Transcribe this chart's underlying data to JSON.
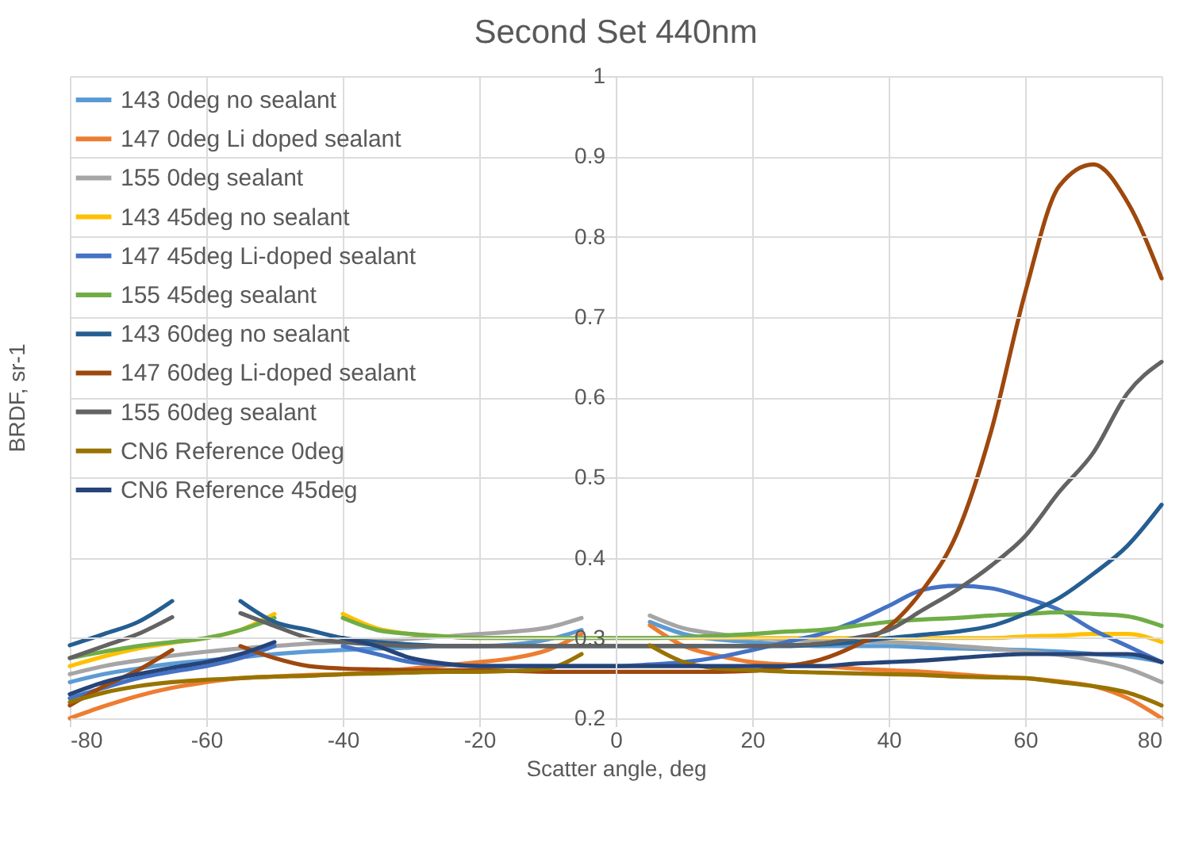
{
  "chart_data": {
    "type": "line",
    "title": "Second Set 440nm",
    "xlabel": "Scatter angle, deg",
    "ylabel": "BRDF, sr-1",
    "x": [
      -80,
      -75,
      -70,
      -65,
      -60,
      -55,
      -50,
      -45,
      -40,
      -35,
      -30,
      -25,
      -20,
      -15,
      -10,
      -5,
      0,
      5,
      10,
      15,
      20,
      25,
      30,
      35,
      40,
      45,
      50,
      55,
      60,
      65,
      70,
      75,
      80
    ],
    "xlim": [
      -80,
      80
    ],
    "xticks": [
      -80,
      -60,
      -40,
      -20,
      0,
      20,
      40,
      60,
      80
    ],
    "ylim": [
      0.2,
      1
    ],
    "yticks": [
      0.2,
      0.3,
      0.4,
      0.5,
      0.6,
      0.7,
      0.8,
      0.9,
      1
    ],
    "grid": true,
    "legend": "top left",
    "marker": "none",
    "series": [
      {
        "name": "143 0deg no sealant",
        "color": "#5b9bd5",
        "values": [
          0.245,
          0.255,
          0.262,
          0.268,
          0.272,
          0.276,
          0.28,
          0.283,
          0.285,
          0.287,
          0.288,
          0.29,
          0.29,
          0.292,
          0.298,
          0.31,
          null,
          0.32,
          0.305,
          0.298,
          0.295,
          0.292,
          0.29,
          0.29,
          0.29,
          0.288,
          0.287,
          0.286,
          0.285,
          0.283,
          0.28,
          0.277,
          0.27
        ]
      },
      {
        "name": "147 0deg Li doped sealant",
        "color": "#ed7d31",
        "values": [
          0.2,
          0.215,
          0.228,
          0.238,
          0.245,
          0.25,
          0.252,
          0.254,
          0.255,
          0.258,
          0.262,
          0.266,
          0.27,
          0.275,
          0.285,
          0.305,
          null,
          0.316,
          0.29,
          0.278,
          0.27,
          0.267,
          0.265,
          0.262,
          0.26,
          0.258,
          0.255,
          0.252,
          0.25,
          0.246,
          0.24,
          0.225,
          0.2
        ]
      },
      {
        "name": "155 0deg sealant",
        "color": "#a5a5a5",
        "values": [
          0.255,
          0.265,
          0.272,
          0.278,
          0.283,
          0.287,
          0.29,
          0.293,
          0.295,
          0.297,
          0.299,
          0.302,
          0.305,
          0.308,
          0.313,
          0.325,
          null,
          0.328,
          0.312,
          0.305,
          0.3,
          0.298,
          0.297,
          0.296,
          0.295,
          0.293,
          0.29,
          0.287,
          0.283,
          0.279,
          0.272,
          0.262,
          0.245
        ]
      },
      {
        "name": "143 45deg no sealant",
        "color": "#ffc000",
        "values": [
          0.265,
          0.277,
          0.287,
          0.294,
          0.3,
          0.31,
          0.33,
          null,
          0.33,
          0.312,
          0.305,
          0.302,
          0.3,
          0.3,
          0.3,
          0.3,
          0.3,
          0.3,
          0.3,
          0.3,
          0.3,
          0.3,
          0.3,
          0.3,
          0.3,
          0.3,
          0.3,
          0.3,
          0.302,
          0.303,
          0.305,
          0.305,
          0.295
        ]
      },
      {
        "name": "147 45deg Li-doped sealant",
        "color": "#4472c4",
        "values": [
          0.225,
          0.238,
          0.25,
          0.258,
          0.265,
          0.275,
          0.29,
          null,
          0.29,
          0.28,
          0.27,
          0.267,
          0.265,
          0.265,
          0.265,
          0.265,
          0.265,
          0.267,
          0.27,
          0.276,
          0.285,
          0.295,
          0.305,
          0.32,
          0.34,
          0.36,
          0.365,
          0.362,
          0.35,
          0.335,
          0.31,
          0.29,
          0.27
        ]
      },
      {
        "name": "155 45deg sealant",
        "color": "#70ad47",
        "values": [
          0.275,
          0.283,
          0.29,
          0.295,
          0.3,
          0.31,
          0.325,
          null,
          0.325,
          0.31,
          0.305,
          0.302,
          0.3,
          0.3,
          0.3,
          0.3,
          0.3,
          0.3,
          0.301,
          0.303,
          0.305,
          0.308,
          0.31,
          0.315,
          0.32,
          0.323,
          0.325,
          0.328,
          0.33,
          0.332,
          0.33,
          0.327,
          0.315
        ]
      },
      {
        "name": "143 60deg no sealant",
        "color": "#255e91",
        "values": [
          0.291,
          0.305,
          0.32,
          0.346,
          null,
          0.346,
          0.32,
          0.31,
          0.3,
          0.295,
          0.292,
          0.29,
          0.29,
          0.29,
          0.29,
          0.29,
          0.29,
          0.29,
          0.29,
          0.29,
          0.29,
          0.29,
          0.292,
          0.295,
          0.3,
          0.304,
          0.308,
          0.315,
          0.33,
          0.35,
          0.38,
          0.415,
          0.466
        ]
      },
      {
        "name": "147 60deg Li-doped sealant",
        "color": "#9e480e",
        "values": [
          0.216,
          0.24,
          0.26,
          0.285,
          null,
          0.29,
          0.275,
          0.265,
          0.262,
          0.261,
          0.26,
          0.26,
          0.26,
          0.259,
          0.258,
          0.258,
          0.258,
          0.258,
          0.258,
          0.258,
          0.259,
          0.265,
          0.273,
          0.29,
          0.314,
          0.36,
          0.43,
          0.557,
          0.73,
          0.863,
          0.89,
          0.843,
          0.748
        ]
      },
      {
        "name": "155 60deg sealant",
        "color": "#636363",
        "values": [
          0.275,
          0.29,
          0.305,
          0.326,
          null,
          0.331,
          0.315,
          0.3,
          0.295,
          0.292,
          0.29,
          0.29,
          0.29,
          0.29,
          0.29,
          0.29,
          0.29,
          0.29,
          0.29,
          0.29,
          0.29,
          0.291,
          0.293,
          0.3,
          0.31,
          0.335,
          0.36,
          0.39,
          0.427,
          0.482,
          0.531,
          0.605,
          0.644
        ]
      },
      {
        "name": "CN6 Reference 0deg",
        "color": "#997300",
        "values": [
          0.22,
          0.232,
          0.24,
          0.245,
          0.248,
          0.25,
          0.252,
          0.253,
          0.255,
          0.256,
          0.257,
          0.258,
          0.258,
          0.259,
          0.262,
          0.28,
          null,
          0.291,
          0.27,
          0.262,
          0.26,
          0.258,
          0.257,
          0.256,
          0.255,
          0.254,
          0.252,
          0.251,
          0.25,
          0.245,
          0.24,
          0.232,
          0.216
        ]
      },
      {
        "name": "CN6 Reference 45deg",
        "color": "#264478",
        "values": [
          0.23,
          0.245,
          0.255,
          0.263,
          0.27,
          0.28,
          0.295,
          null,
          0.3,
          0.29,
          0.275,
          0.268,
          0.265,
          0.265,
          0.265,
          0.265,
          0.265,
          0.265,
          0.265,
          0.265,
          0.265,
          0.265,
          0.265,
          0.268,
          0.27,
          0.272,
          0.275,
          0.278,
          0.28,
          0.28,
          0.28,
          0.28,
          0.27
        ]
      }
    ]
  }
}
